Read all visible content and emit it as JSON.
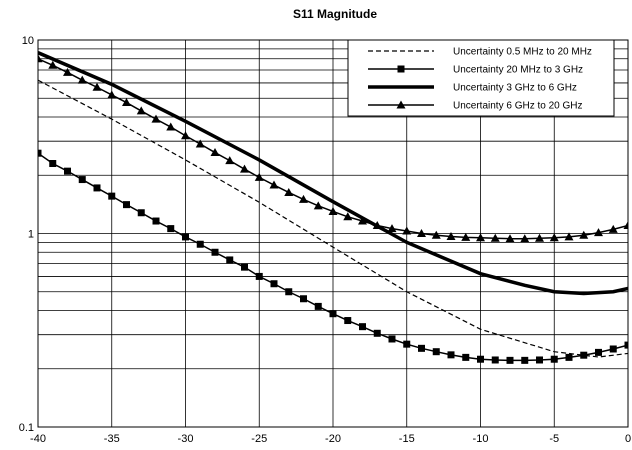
{
  "chart_data": {
    "type": "line",
    "title": "S11 Magnitude",
    "xlabel": "",
    "ylabel": "",
    "xlim": [
      -40,
      0
    ],
    "ylim": [
      0.1,
      10
    ],
    "y_scale": "log",
    "grid": true,
    "legend_position": "top-right",
    "x_ticks": [
      -40,
      -35,
      -30,
      -25,
      -20,
      -15,
      -10,
      -5,
      0
    ],
    "x_tick_labels": [
      "-40",
      "-35",
      "-30",
      "-25",
      "-20",
      "-15",
      "-10",
      "-5",
      "0"
    ],
    "y_ticks": [
      0.1,
      1,
      10
    ],
    "y_tick_labels": [
      "0.1",
      "1",
      "10"
    ],
    "series": [
      {
        "name": "Uncertainty 0.5 MHz to 20 MHz",
        "style": "dashed",
        "marker": "none",
        "x": [
          -40,
          -35,
          -30,
          -25,
          -20,
          -15,
          -10,
          -5,
          -2,
          0
        ],
        "y": [
          6.2,
          3.9,
          2.4,
          1.45,
          0.85,
          0.5,
          0.32,
          0.245,
          0.23,
          0.24
        ]
      },
      {
        "name": "Uncertainty 20 MHz to  3 GHz",
        "style": "solid",
        "marker": "square",
        "x": [
          -40,
          -39,
          -38,
          -37,
          -36,
          -35,
          -34,
          -33,
          -32,
          -31,
          -30,
          -29,
          -28,
          -27,
          -26,
          -25,
          -24,
          -23,
          -22,
          -21,
          -20,
          -19,
          -18,
          -17,
          -16,
          -15,
          -14,
          -13,
          -12,
          -11,
          -10,
          -9,
          -8,
          -7,
          -6,
          -5,
          -4,
          -3,
          -2,
          -1,
          0
        ],
        "y": [
          2.6,
          2.3,
          2.1,
          1.9,
          1.72,
          1.56,
          1.41,
          1.28,
          1.16,
          1.06,
          0.96,
          0.88,
          0.8,
          0.73,
          0.67,
          0.6,
          0.55,
          0.5,
          0.46,
          0.42,
          0.385,
          0.355,
          0.33,
          0.305,
          0.285,
          0.268,
          0.255,
          0.245,
          0.236,
          0.229,
          0.224,
          0.222,
          0.221,
          0.221,
          0.222,
          0.224,
          0.229,
          0.235,
          0.243,
          0.253,
          0.265
        ]
      },
      {
        "name": "Uncertainty 3 GHz to 6 GHz",
        "style": "thick",
        "marker": "none",
        "x": [
          -40,
          -35,
          -30,
          -25,
          -20,
          -15,
          -10,
          -7,
          -5,
          -3,
          -1,
          0
        ],
        "y": [
          8.6,
          5.9,
          3.8,
          2.4,
          1.46,
          0.9,
          0.62,
          0.54,
          0.5,
          0.49,
          0.5,
          0.52
        ]
      },
      {
        "name": "Uncertainty 6 GHz to 20 GHz",
        "style": "solid",
        "marker": "triangle",
        "x": [
          -40,
          -39,
          -38,
          -37,
          -36,
          -35,
          -34,
          -33,
          -32,
          -31,
          -30,
          -29,
          -28,
          -27,
          -26,
          -25,
          -24,
          -23,
          -22,
          -21,
          -20,
          -19,
          -18,
          -17,
          -16,
          -15,
          -14,
          -13,
          -12,
          -11,
          -10,
          -9,
          -8,
          -7,
          -6,
          -5,
          -4,
          -3,
          -2,
          -1,
          0
        ],
        "y": [
          8.0,
          7.4,
          6.8,
          6.2,
          5.7,
          5.2,
          4.75,
          4.3,
          3.9,
          3.55,
          3.2,
          2.9,
          2.62,
          2.38,
          2.15,
          1.95,
          1.78,
          1.63,
          1.5,
          1.39,
          1.3,
          1.22,
          1.16,
          1.1,
          1.06,
          1.03,
          1.0,
          0.98,
          0.965,
          0.955,
          0.95,
          0.945,
          0.94,
          0.94,
          0.945,
          0.95,
          0.96,
          0.98,
          1.01,
          1.05,
          1.1
        ]
      }
    ]
  }
}
